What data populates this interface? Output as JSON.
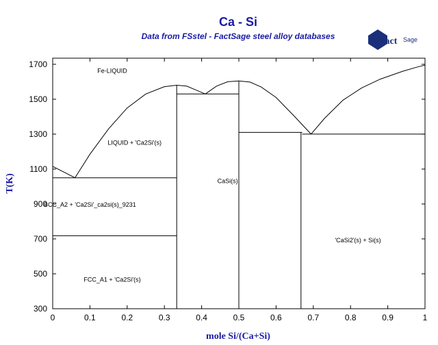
{
  "header": {
    "title": "Ca - Si",
    "subtitle": "Data from FSstel - FactSage steel alloy databases",
    "logo_main": "Fact",
    "logo_sub": "Sage"
  },
  "axes": {
    "x_label": "mole Si/(Ca+Si)",
    "y_label": "T(K)",
    "x_range": [
      0,
      1
    ],
    "y_range": [
      300,
      1750
    ],
    "x_ticks": [
      0,
      0.1,
      0.2,
      0.3,
      0.4,
      0.5,
      0.6,
      0.7,
      0.8,
      0.9,
      1
    ],
    "x_tick_labels": [
      "0",
      "0.1",
      "0.2",
      "0.3",
      "0.4",
      "0.5",
      "0.6",
      "0.7",
      "0.8",
      "0.9",
      "1"
    ],
    "y_ticks": [
      300,
      500,
      700,
      900,
      1100,
      1300,
      1500,
      1700
    ],
    "y_tick_labels": [
      "300",
      "500",
      "700",
      "900",
      "1100",
      "1300",
      "1500",
      "1700"
    ]
  },
  "regions": [
    {
      "id": "fe-liquid",
      "text": "Fe-LIQUID",
      "x": 0.16,
      "y": 1650
    },
    {
      "id": "liquid-ca2si",
      "text": "LIQUID + 'Ca2Si'(s)",
      "x": 0.22,
      "y": 1240
    },
    {
      "id": "bcc-ca2si",
      "text": "BCC_A2 + 'Ca2Si'_ca2si(s)_9231",
      "x": 0.1,
      "y": 885
    },
    {
      "id": "fcc-ca2si",
      "text": "FCC_A1 + 'Ca2Si'(s)",
      "x": 0.16,
      "y": 455
    },
    {
      "id": "casi",
      "text": "CaSi(s)",
      "x": 0.47,
      "y": 1020
    },
    {
      "id": "casi2-si",
      "text": "'CaSi2'(s) + Si(s)",
      "x": 0.82,
      "y": 680
    }
  ],
  "boundaries": [
    {
      "id": "liquidus-left-a",
      "points": [
        [
          0,
          1115
        ],
        [
          0.06,
          1050
        ]
      ]
    },
    {
      "id": "liquidus-ca2si",
      "points": [
        [
          0.06,
          1050
        ],
        [
          0.1,
          1185
        ],
        [
          0.15,
          1330
        ],
        [
          0.2,
          1450
        ],
        [
          0.25,
          1530
        ],
        [
          0.3,
          1572
        ],
        [
          0.333,
          1580
        ],
        [
          0.36,
          1575
        ],
        [
          0.39,
          1548
        ],
        [
          0.41,
          1530
        ]
      ]
    },
    {
      "id": "liquidus-casi",
      "points": [
        [
          0.41,
          1530
        ],
        [
          0.44,
          1575
        ],
        [
          0.47,
          1600
        ],
        [
          0.5,
          1605
        ],
        [
          0.53,
          1598
        ],
        [
          0.56,
          1570
        ],
        [
          0.6,
          1510
        ],
        [
          0.65,
          1400
        ],
        [
          0.694,
          1300
        ]
      ]
    },
    {
      "id": "liquidus-si",
      "points": [
        [
          0.694,
          1300
        ],
        [
          0.73,
          1390
        ],
        [
          0.78,
          1495
        ],
        [
          0.83,
          1565
        ],
        [
          0.88,
          1615
        ],
        [
          0.94,
          1660
        ],
        [
          0.98,
          1685
        ],
        [
          1,
          1695
        ]
      ]
    },
    {
      "id": "eutectic-1050",
      "points": [
        [
          0,
          1050
        ],
        [
          0.333,
          1050
        ]
      ]
    },
    {
      "id": "transition-718",
      "points": [
        [
          0,
          718
        ],
        [
          0.333,
          718
        ]
      ]
    },
    {
      "id": "eutectic-1530",
      "points": [
        [
          0.333,
          1530
        ],
        [
          0.5,
          1530
        ]
      ]
    },
    {
      "id": "eutectic-1300-left",
      "points": [
        [
          0.5,
          1310
        ],
        [
          0.67,
          1310
        ]
      ]
    },
    {
      "id": "eutectic-1300-right",
      "points": [
        [
          0.67,
          1300
        ],
        [
          1,
          1300
        ]
      ]
    },
    {
      "id": "ca2si-line",
      "points": [
        [
          0.333,
          300
        ],
        [
          0.333,
          1580
        ]
      ]
    },
    {
      "id": "casi-line",
      "points": [
        [
          0.5,
          300
        ],
        [
          0.5,
          1605
        ]
      ]
    },
    {
      "id": "casi2-line",
      "points": [
        [
          0.667,
          300
        ],
        [
          0.667,
          1310
        ]
      ]
    }
  ]
}
